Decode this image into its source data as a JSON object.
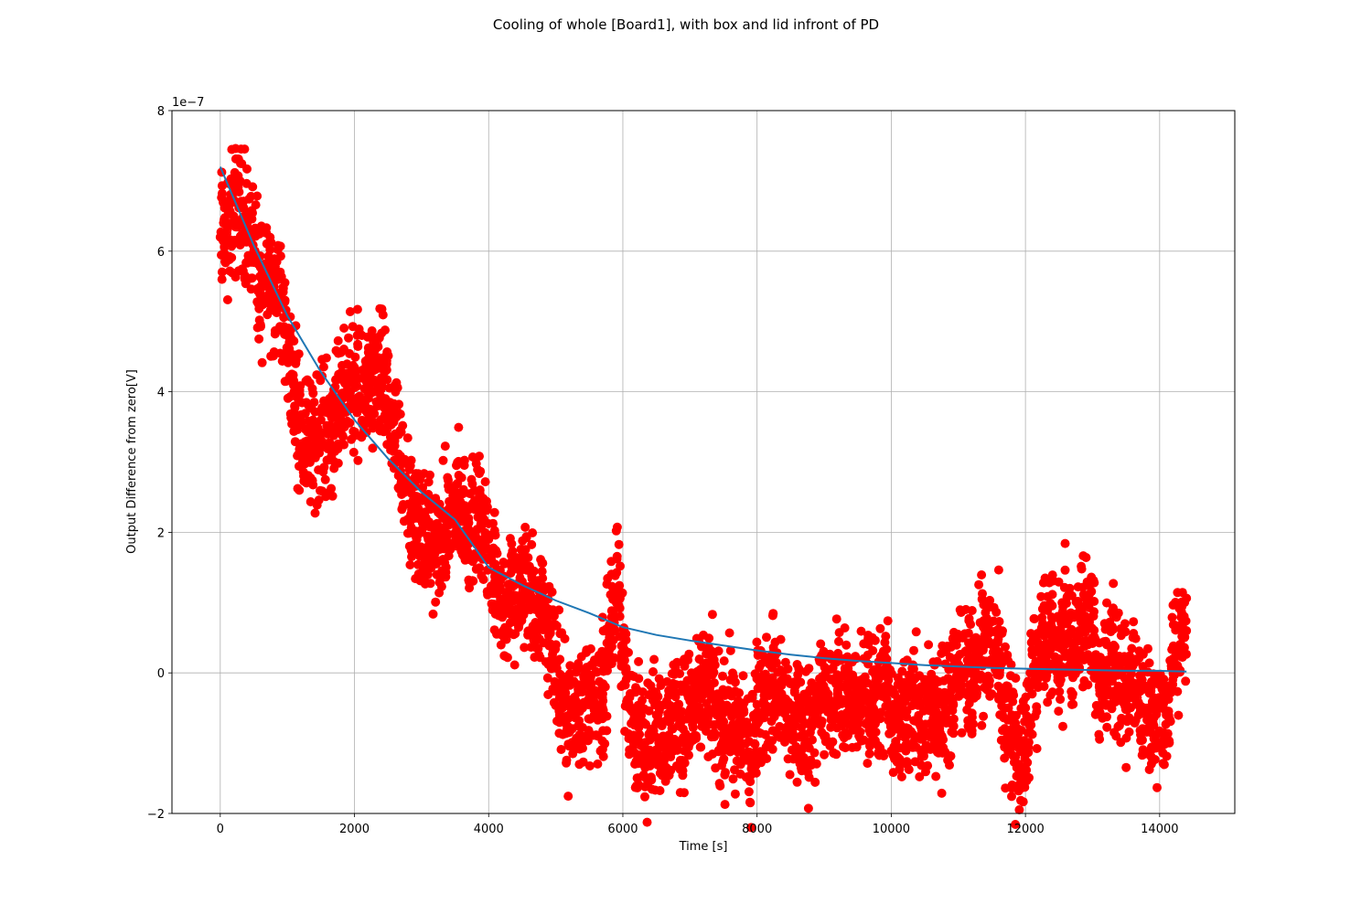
{
  "chart_data": {
    "type": "scatter",
    "title": "Cooling of whole [Board1], with box and lid infront of PD",
    "xlabel": "Time [s]",
    "ylabel": "Output Difference from zero[V]",
    "y_offset_label": "1e−7",
    "xlim": [
      -720,
      15120
    ],
    "ylim": [
      -2e-07,
      8e-07
    ],
    "x_ticks": [
      0,
      2000,
      4000,
      6000,
      8000,
      10000,
      12000,
      14000
    ],
    "x_tick_labels": [
      "0",
      "2000",
      "4000",
      "6000",
      "8000",
      "10000",
      "12000",
      "14000"
    ],
    "y_ticks": [
      -2e-07,
      0,
      2e-07,
      4e-07,
      6e-07,
      8e-07
    ],
    "y_tick_labels": [
      "−2",
      "0",
      "2",
      "4",
      "6",
      "8"
    ],
    "grid": true,
    "series": [
      {
        "kind": "scatter",
        "color": "#ff0000",
        "marker": "circle",
        "points": [
          [
            0,
            6.2e-07
          ],
          [
            100,
            6.3e-07
          ],
          [
            200,
            6.5e-07
          ],
          [
            300,
            6.7e-07
          ],
          [
            400,
            6.4e-07
          ],
          [
            500,
            6e-07
          ],
          [
            600,
            5.4e-07
          ],
          [
            700,
            5.8e-07
          ],
          [
            800,
            5.5e-07
          ],
          [
            900,
            5.2e-07
          ],
          [
            1000,
            4.8e-07
          ],
          [
            1100,
            4e-07
          ],
          [
            1200,
            3.6e-07
          ],
          [
            1300,
            3.3e-07
          ],
          [
            1400,
            3.2e-07
          ],
          [
            1500,
            3.6e-07
          ],
          [
            1600,
            3.4e-07
          ],
          [
            1700,
            3.5e-07
          ],
          [
            1800,
            3.8e-07
          ],
          [
            1900,
            4.2e-07
          ],
          [
            2000,
            4.1e-07
          ],
          [
            2100,
            3.9e-07
          ],
          [
            2200,
            4.1e-07
          ],
          [
            2300,
            4e-07
          ],
          [
            2400,
            4.2e-07
          ],
          [
            2500,
            3.8e-07
          ],
          [
            2600,
            3.3e-07
          ],
          [
            2700,
            3e-07
          ],
          [
            2800,
            2.4e-07
          ],
          [
            2900,
            2.2e-07
          ],
          [
            3000,
            2e-07
          ],
          [
            3100,
            1.9e-07
          ],
          [
            3200,
            1.7e-07
          ],
          [
            3300,
            2e-07
          ],
          [
            3400,
            2.1e-07
          ],
          [
            3500,
            2.3e-07
          ],
          [
            3600,
            2.4e-07
          ],
          [
            3700,
            2.2e-07
          ],
          [
            3800,
            2e-07
          ],
          [
            3900,
            2.1e-07
          ],
          [
            4000,
            1.9e-07
          ],
          [
            4100,
            1.4e-07
          ],
          [
            4200,
            1e-07
          ],
          [
            4300,
            9e-08
          ],
          [
            4400,
            1.1e-07
          ],
          [
            4500,
            1.3e-07
          ],
          [
            4600,
            1.1e-07
          ],
          [
            4700,
            9e-08
          ],
          [
            4800,
            1e-07
          ],
          [
            4900,
            7e-08
          ],
          [
            5000,
            1e-08
          ],
          [
            5100,
            -5e-08
          ],
          [
            5200,
            -6e-08
          ],
          [
            5300,
            -4e-08
          ],
          [
            5400,
            -5e-08
          ],
          [
            5500,
            -3e-08
          ],
          [
            5600,
            -6e-08
          ],
          [
            5700,
            -3e-08
          ],
          [
            5800,
            5e-08
          ],
          [
            5900,
            1.2e-07
          ],
          [
            6000,
            4e-08
          ],
          [
            6100,
            -5e-08
          ],
          [
            6200,
            -9e-08
          ],
          [
            6300,
            -7e-08
          ],
          [
            6400,
            -1.1e-07
          ],
          [
            6500,
            -6e-08
          ],
          [
            6600,
            -9e-08
          ],
          [
            6700,
            -7e-08
          ],
          [
            6800,
            -5e-08
          ],
          [
            6900,
            -8e-08
          ],
          [
            7000,
            -4e-08
          ],
          [
            7100,
            -6e-08
          ],
          [
            7200,
            -3e-08
          ],
          [
            7300,
            -2e-08
          ],
          [
            7400,
            -6e-08
          ],
          [
            7500,
            -9e-08
          ],
          [
            7600,
            -5e-08
          ],
          [
            7700,
            -1e-07
          ],
          [
            7800,
            -8e-08
          ],
          [
            7900,
            -1.2e-07
          ],
          [
            8000,
            -6e-08
          ],
          [
            8100,
            -4e-08
          ],
          [
            8200,
            -1e-08
          ],
          [
            8300,
            -2e-08
          ],
          [
            8400,
            -5e-08
          ],
          [
            8500,
            -7e-08
          ],
          [
            8600,
            -6e-08
          ],
          [
            8700,
            -9e-08
          ],
          [
            8800,
            -7e-08
          ],
          [
            8900,
            -4e-08
          ],
          [
            9000,
            -3e-08
          ],
          [
            9100,
            -5e-08
          ],
          [
            9200,
            -3e-08
          ],
          [
            9300,
            -2e-08
          ],
          [
            9400,
            -6e-08
          ],
          [
            9500,
            -4e-08
          ],
          [
            9600,
            -1e-08
          ],
          [
            9700,
            -3e-08
          ],
          [
            9800,
            -6e-08
          ],
          [
            9900,
            -2e-08
          ],
          [
            10000,
            -6e-08
          ],
          [
            10100,
            -8e-08
          ],
          [
            10200,
            -6e-08
          ],
          [
            10300,
            -3e-08
          ],
          [
            10400,
            -7e-08
          ],
          [
            10500,
            -9e-08
          ],
          [
            10600,
            -4e-08
          ],
          [
            10700,
            -6e-08
          ],
          [
            10800,
            -5e-08
          ],
          [
            10900,
            -2e-08
          ],
          [
            11000,
            0.0
          ],
          [
            11100,
            3e-08
          ],
          [
            11200,
            -3e-08
          ],
          [
            11300,
            2e-08
          ],
          [
            11400,
            5e-08
          ],
          [
            11500,
            4e-08
          ],
          [
            11600,
            3e-08
          ],
          [
            11700,
            -5e-08
          ],
          [
            11800,
            -8e-08
          ],
          [
            11900,
            -1.3e-07
          ],
          [
            12000,
            -1.1e-07
          ],
          [
            12100,
            -3e-08
          ],
          [
            12200,
            4e-08
          ],
          [
            12300,
            6e-08
          ],
          [
            12400,
            5e-08
          ],
          [
            12500,
            2e-08
          ],
          [
            12600,
            7e-08
          ],
          [
            12700,
            3e-08
          ],
          [
            12800,
            6e-08
          ],
          [
            12900,
            8e-08
          ],
          [
            13000,
            5e-08
          ],
          [
            13100,
            -2e-08
          ],
          [
            13200,
            1e-08
          ],
          [
            13300,
            2e-08
          ],
          [
            13400,
            -3e-08
          ],
          [
            13500,
            -4e-08
          ],
          [
            13600,
            1e-08
          ],
          [
            13700,
            -2e-08
          ],
          [
            13800,
            -6e-08
          ],
          [
            13900,
            -7e-08
          ],
          [
            14000,
            -4e-08
          ],
          [
            14100,
            -6e-08
          ],
          [
            14200,
            2e-08
          ],
          [
            14300,
            4e-08
          ],
          [
            14400,
            6e-08
          ]
        ]
      },
      {
        "kind": "line",
        "color": "#1f77b4",
        "points": [
          [
            0,
            7.2e-07
          ],
          [
            500,
            6.08e-07
          ],
          [
            1000,
            5.08e-07
          ],
          [
            1500,
            4.28e-07
          ],
          [
            2000,
            3.6e-07
          ],
          [
            2500,
            3.05e-07
          ],
          [
            3000,
            2.57e-07
          ],
          [
            3500,
            2.18e-07
          ],
          [
            4000,
            1.5e-07
          ],
          [
            4500,
            1.25e-07
          ],
          [
            5000,
            1.03e-07
          ],
          [
            5500,
            8.5e-08
          ],
          [
            6000,
            6.5e-08
          ],
          [
            6500,
            5.4e-08
          ],
          [
            7000,
            4.6e-08
          ],
          [
            7500,
            3.9e-08
          ],
          [
            8000,
            3.2e-08
          ],
          [
            8500,
            2.6e-08
          ],
          [
            9000,
            2.1e-08
          ],
          [
            9500,
            1.7e-08
          ],
          [
            10000,
            1.4e-08
          ],
          [
            10500,
            1.1e-08
          ],
          [
            11000,
            9e-09
          ],
          [
            11500,
            7e-09
          ],
          [
            12000,
            6e-09
          ],
          [
            12500,
            5e-09
          ],
          [
            13000,
            4e-09
          ],
          [
            13500,
            3e-09
          ],
          [
            14000,
            3e-09
          ],
          [
            14400,
            2e-09
          ]
        ]
      }
    ]
  }
}
